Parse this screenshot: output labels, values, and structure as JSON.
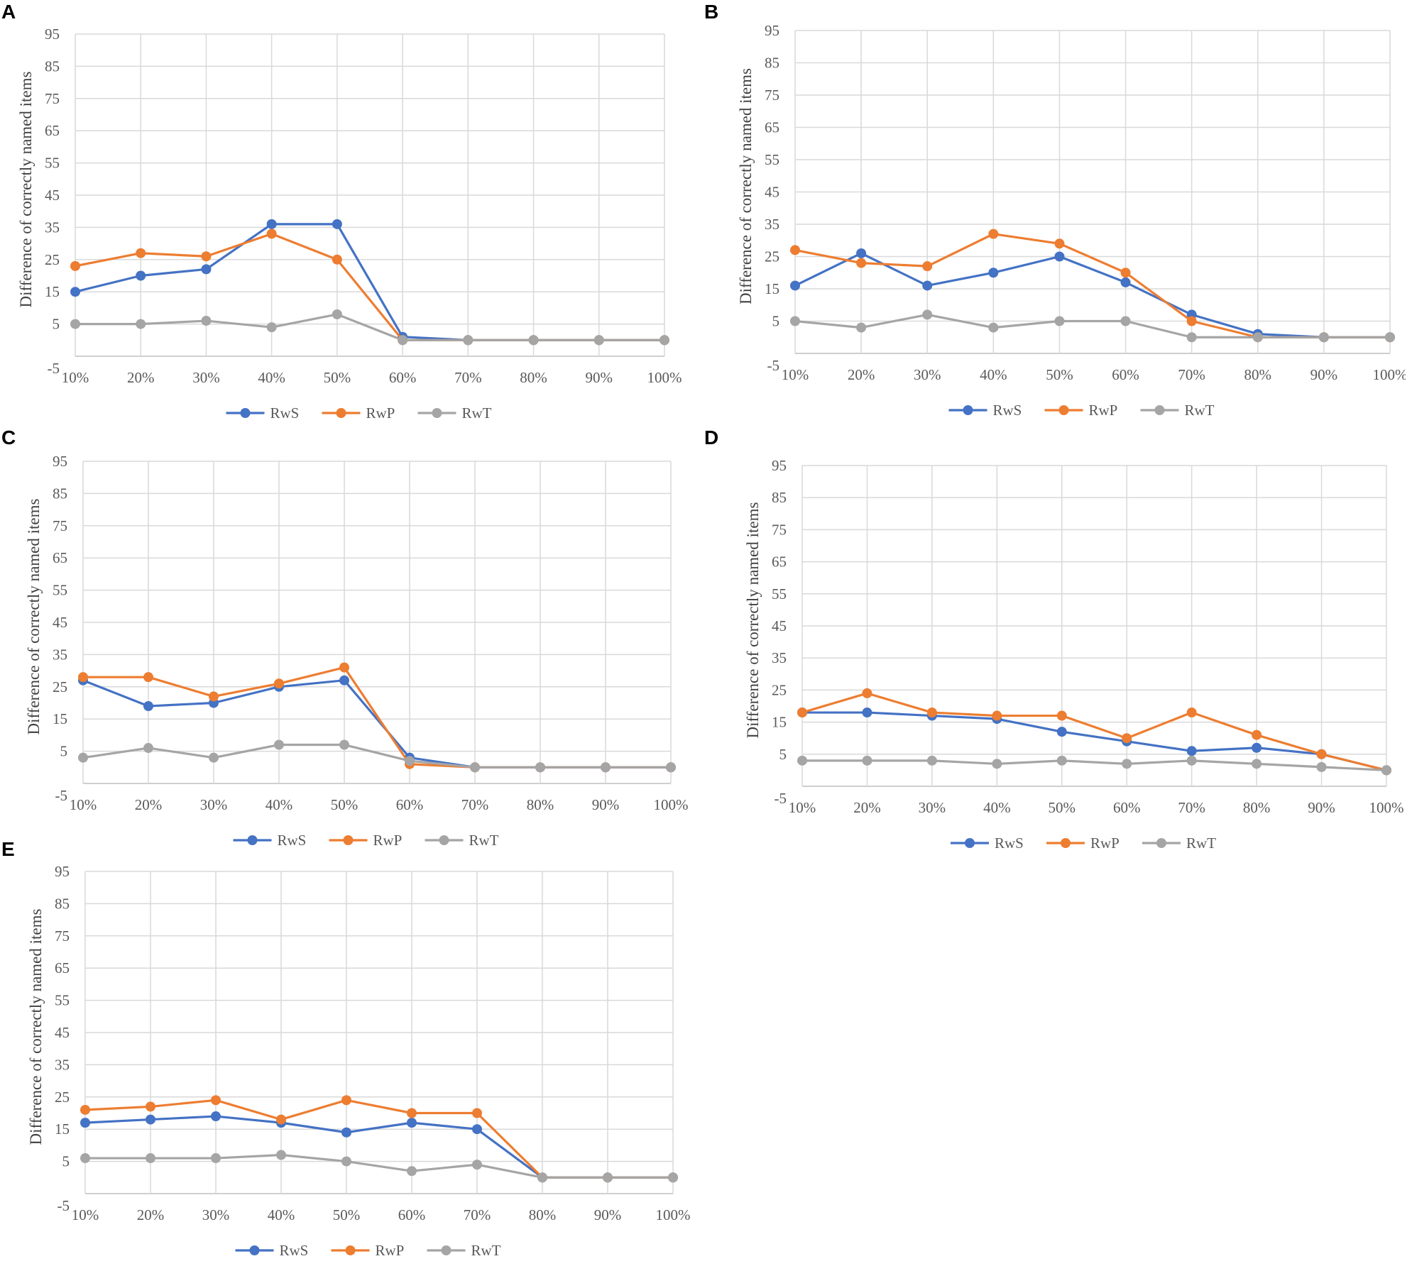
{
  "colors": {
    "RwS": "#4472c4",
    "RwP": "#ed7d31",
    "RwT": "#a5a5a5"
  },
  "chart_data": [
    {
      "panel": "A",
      "type": "line",
      "ylabel": "Difference of correctly named items",
      "xlabel": "",
      "categories": [
        "10%",
        "20%",
        "30%",
        "40%",
        "50%",
        "60%",
        "70%",
        "80%",
        "90%",
        "100%"
      ],
      "yticks": [
        "-5",
        "5",
        "15",
        "25",
        "35",
        "45",
        "55",
        "65",
        "75",
        "85",
        "95"
      ],
      "ylim": [
        -5,
        95
      ],
      "grid": true,
      "legend_position": "bottom",
      "series": [
        {
          "name": "RwS",
          "values": [
            15,
            20,
            22,
            36,
            36,
            1,
            0,
            0,
            0,
            0
          ]
        },
        {
          "name": "RwP",
          "values": [
            23,
            27,
            26,
            33,
            25,
            0,
            0,
            0,
            0,
            0
          ]
        },
        {
          "name": "RwT",
          "values": [
            5,
            5,
            6,
            4,
            8,
            0,
            0,
            0,
            0,
            0
          ]
        }
      ]
    },
    {
      "panel": "B",
      "type": "line",
      "ylabel": "Difference of correctly named items",
      "xlabel": "",
      "categories": [
        "10%",
        "20%",
        "30%",
        "40%",
        "50%",
        "60%",
        "70%",
        "80%",
        "90%",
        "100%"
      ],
      "yticks": [
        "-5",
        "5",
        "15",
        "25",
        "35",
        "45",
        "55",
        "65",
        "75",
        "85",
        "95"
      ],
      "ylim": [
        -5,
        95
      ],
      "grid": true,
      "legend_position": "bottom",
      "series": [
        {
          "name": "RwS",
          "values": [
            16,
            26,
            16,
            20,
            25,
            17,
            7,
            1,
            0,
            0
          ]
        },
        {
          "name": "RwP",
          "values": [
            27,
            23,
            22,
            32,
            29,
            20,
            5,
            0,
            0,
            0
          ]
        },
        {
          "name": "RwT",
          "values": [
            5,
            3,
            7,
            3,
            5,
            5,
            0,
            0,
            0,
            0
          ]
        }
      ]
    },
    {
      "panel": "C",
      "type": "line",
      "ylabel": "Difference of correctly named items",
      "xlabel": "",
      "categories": [
        "10%",
        "20%",
        "30%",
        "40%",
        "50%",
        "60%",
        "70%",
        "80%",
        "90%",
        "100%"
      ],
      "yticks": [
        "-5",
        "5",
        "15",
        "25",
        "35",
        "45",
        "55",
        "65",
        "75",
        "85",
        "95"
      ],
      "ylim": [
        -5,
        95
      ],
      "grid": true,
      "legend_position": "bottom",
      "series": [
        {
          "name": "RwS",
          "values": [
            27,
            19,
            20,
            25,
            27,
            3,
            0,
            0,
            0,
            0
          ]
        },
        {
          "name": "RwP",
          "values": [
            28,
            28,
            22,
            26,
            31,
            1,
            0,
            0,
            0,
            0
          ]
        },
        {
          "name": "RwT",
          "values": [
            3,
            6,
            3,
            7,
            7,
            2,
            0,
            0,
            0,
            0
          ]
        }
      ]
    },
    {
      "panel": "D",
      "type": "line",
      "ylabel": "Difference of correctly named items",
      "xlabel": "",
      "categories": [
        "10%",
        "20%",
        "30%",
        "40%",
        "50%",
        "60%",
        "70%",
        "80%",
        "90%",
        "100%"
      ],
      "yticks": [
        "-5",
        "5",
        "15",
        "25",
        "35",
        "45",
        "55",
        "65",
        "75",
        "85",
        "95"
      ],
      "ylim": [
        -5,
        95
      ],
      "grid": true,
      "legend_position": "bottom",
      "series": [
        {
          "name": "RwS",
          "values": [
            18,
            18,
            17,
            16,
            12,
            9,
            6,
            7,
            5,
            0
          ]
        },
        {
          "name": "RwP",
          "values": [
            18,
            24,
            18,
            17,
            17,
            10,
            18,
            11,
            5,
            0
          ]
        },
        {
          "name": "RwT",
          "values": [
            3,
            3,
            3,
            2,
            3,
            2,
            3,
            2,
            1,
            0
          ]
        }
      ]
    },
    {
      "panel": "E",
      "type": "line",
      "ylabel": "Difference of correctly named items",
      "xlabel": "",
      "categories": [
        "10%",
        "20%",
        "30%",
        "40%",
        "50%",
        "60%",
        "70%",
        "80%",
        "90%",
        "100%"
      ],
      "yticks": [
        "-5",
        "5",
        "15",
        "25",
        "35",
        "45",
        "55",
        "65",
        "75",
        "85",
        "95"
      ],
      "ylim": [
        -5,
        95
      ],
      "grid": true,
      "legend_position": "bottom",
      "series": [
        {
          "name": "RwS",
          "values": [
            17,
            18,
            19,
            17,
            14,
            17,
            15,
            0,
            0,
            0
          ]
        },
        {
          "name": "RwP",
          "values": [
            21,
            22,
            24,
            18,
            24,
            20,
            20,
            0,
            0,
            0
          ]
        },
        {
          "name": "RwT",
          "values": [
            6,
            6,
            6,
            7,
            5,
            2,
            4,
            0,
            0,
            0
          ]
        }
      ]
    }
  ]
}
